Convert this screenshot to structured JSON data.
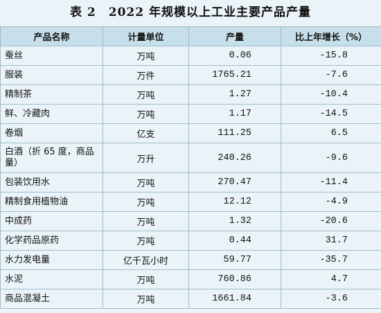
{
  "header": {
    "title": "表 2　2022 年规模以上工业主要产品产量"
  },
  "table": {
    "columns": [
      "产品名称",
      "计量单位",
      "产量",
      "比上年增长（%）"
    ],
    "rows": [
      [
        "蚕丝",
        "万吨",
        "0.06",
        "-15.8"
      ],
      [
        "服装",
        "万件",
        "1765.21",
        "-7.6"
      ],
      [
        "精制茶",
        "万吨",
        "1.27",
        "-10.4"
      ],
      [
        "鲜、冷藏肉",
        "万吨",
        "1.17",
        "-14.5"
      ],
      [
        "卷烟",
        "亿支",
        "111.25",
        "6.5"
      ],
      [
        "白酒（折 65 度，商品量）",
        "万升",
        "240.26",
        "-9.6"
      ],
      [
        "包装饮用水",
        "万吨",
        "270.47",
        "-11.4"
      ],
      [
        "精制食用植物油",
        "万吨",
        "12.12",
        "-4.9"
      ],
      [
        "中成药",
        "万吨",
        "1.32",
        "-20.6"
      ],
      [
        "化学药品原药",
        "万吨",
        "0.44",
        "31.7"
      ],
      [
        "水力发电量",
        "亿千瓦小时",
        "59.77",
        "-35.7"
      ],
      [
        "水泥",
        "万吨",
        "760.86",
        "4.7"
      ],
      [
        "商品混凝土",
        "万吨",
        "1661.84",
        "-3.6"
      ]
    ]
  }
}
